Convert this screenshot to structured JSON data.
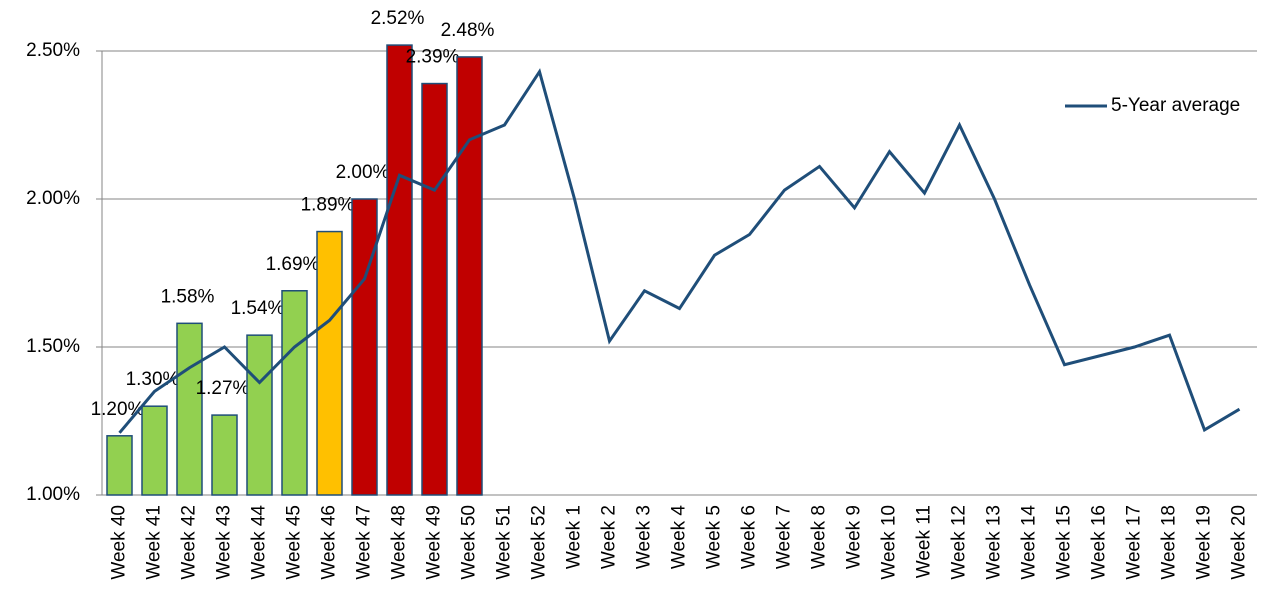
{
  "chart_data": {
    "type": "bar",
    "categories": [
      "Week 40",
      "Week 41",
      "Week 42",
      "Week 43",
      "Week 44",
      "Week 45",
      "Week 46",
      "Week 47",
      "Week 48",
      "Week 49",
      "Week 50",
      "Week 51",
      "Week 52",
      "Week 1",
      "Week 2",
      "Week 3",
      "Week 4",
      "Week 5",
      "Week 6",
      "Week 7",
      "Week 8",
      "Week 9",
      "Week 10",
      "Week 11",
      "Week 12",
      "Week 13",
      "Week 14",
      "Week 15",
      "Week 16",
      "Week 17",
      "Week 18",
      "Week 19",
      "Week 20"
    ],
    "series": [
      {
        "type": "bar",
        "border_color": "#1f4e79",
        "colors": [
          "#92d050",
          "#92d050",
          "#92d050",
          "#92d050",
          "#92d050",
          "#92d050",
          "#ffc000",
          "#c00000",
          "#c00000",
          "#c00000",
          "#c00000",
          null,
          null,
          null,
          null,
          null,
          null,
          null,
          null,
          null,
          null,
          null,
          null,
          null,
          null,
          null,
          null,
          null,
          null,
          null,
          null,
          null,
          null
        ],
        "values": [
          1.2,
          1.3,
          1.58,
          1.27,
          1.54,
          1.69,
          1.89,
          2.0,
          2.52,
          2.39,
          2.48,
          null,
          null,
          null,
          null,
          null,
          null,
          null,
          null,
          null,
          null,
          null,
          null,
          null,
          null,
          null,
          null,
          null,
          null,
          null,
          null,
          null,
          null
        ],
        "value_labels": [
          "1.20%",
          "1.30%",
          "1.58%",
          "1.27%",
          "1.54%",
          "1.69%",
          "1.89%",
          "2.00%",
          "2.52%",
          "2.39%",
          "2.48%",
          null,
          null,
          null,
          null,
          null,
          null,
          null,
          null,
          null,
          null,
          null,
          null,
          null,
          null,
          null,
          null,
          null,
          null,
          null,
          null,
          null,
          null
        ]
      },
      {
        "type": "line",
        "name": "5-Year average",
        "color": "#1f4e79",
        "values": [
          1.21,
          1.35,
          1.43,
          1.5,
          1.38,
          1.5,
          1.59,
          1.73,
          2.08,
          2.03,
          2.2,
          2.25,
          2.43,
          2.0,
          1.52,
          1.69,
          1.63,
          1.81,
          1.88,
          2.03,
          2.11,
          1.97,
          2.16,
          2.02,
          2.25,
          2.0,
          1.71,
          1.44,
          1.47,
          1.5,
          1.54,
          1.22,
          1.29
        ]
      }
    ],
    "ylim": [
      1.0,
      2.5
    ],
    "yticks": [
      {
        "value": 1.0,
        "label": "1.00%"
      },
      {
        "value": 1.5,
        "label": "1.50%"
      },
      {
        "value": 2.0,
        "label": "2.00%"
      },
      {
        "value": 2.5,
        "label": "2.50%"
      }
    ],
    "grid": true,
    "legend": "top-right"
  }
}
